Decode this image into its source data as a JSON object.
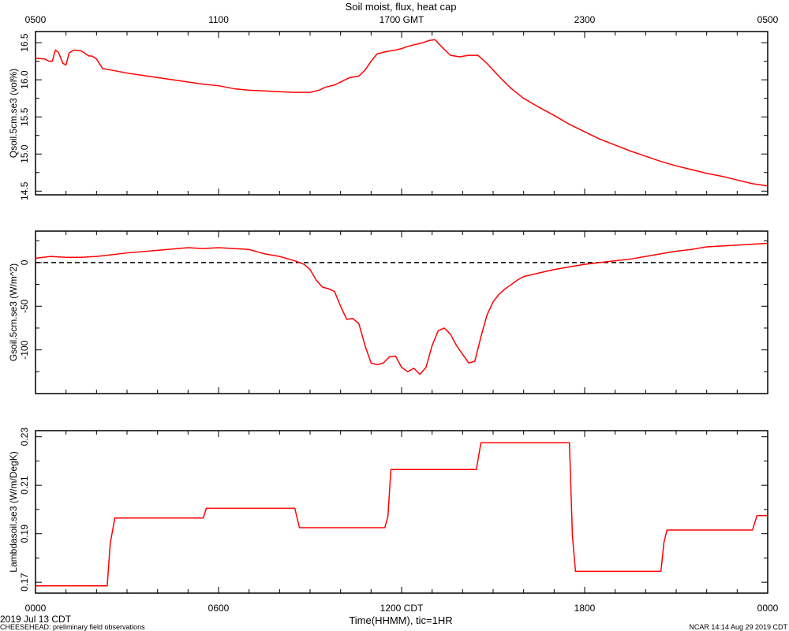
{
  "title": "Soil moist, flux, heat cap",
  "top_axis": {
    "ticks": [
      "0500",
      "1100",
      "1700 GMT",
      "2300",
      "0500"
    ]
  },
  "bottom_axis": {
    "ticks": [
      "0000",
      "0600",
      "1200 CDT",
      "1800",
      "0000"
    ],
    "label": "Time(HHMM), tic=1HR"
  },
  "footer": {
    "date": "2019 Jul 13 CDT",
    "project": "CHEESEHEAD: preliminary field observations",
    "credit": "NCAR 14:14 Aug 29 2019 CDT"
  },
  "colors": {
    "series": "#ff0000",
    "axes": "#000000",
    "zero_line": "#000000"
  },
  "chart_data": [
    {
      "type": "line",
      "ylabel": "Qsoil.5cm.se3 (vol%)",
      "x_units": "hours CDT from 0000",
      "xlim": [
        0,
        24
      ],
      "ylim": [
        14.45,
        16.65
      ],
      "yticks": [
        "14.5",
        "15.0",
        "15.5",
        "16.0",
        "16.5"
      ],
      "ytick_values": [
        14.5,
        15.0,
        15.5,
        16.0,
        16.5
      ],
      "series": [
        {
          "x": [
            0,
            0.3,
            0.45,
            0.55,
            0.65,
            0.75,
            0.9,
            1.0,
            1.1,
            1.25,
            1.5,
            1.75,
            1.85,
            2.0,
            2.2,
            2.5,
            3.0,
            3.5,
            4.0,
            4.5,
            5.0,
            5.5,
            6.0,
            6.5,
            7.0,
            7.5,
            8.0,
            8.5,
            9.0,
            9.3,
            9.5,
            9.8,
            10.0,
            10.3,
            10.6,
            10.8,
            11.0,
            11.2,
            11.5,
            11.8,
            12.0,
            12.2,
            12.5,
            12.7,
            12.9,
            13.1,
            13.3,
            13.6,
            13.9,
            14.2,
            14.5,
            14.8,
            15.0,
            15.3,
            15.6,
            16.0,
            16.5,
            17.0,
            17.5,
            18.0,
            18.5,
            19.0,
            19.5,
            20.0,
            20.5,
            21.0,
            21.5,
            22.0,
            22.5,
            23.0,
            23.5,
            24.0
          ],
          "y": [
            16.29,
            16.28,
            16.25,
            16.25,
            16.4,
            16.37,
            16.22,
            16.2,
            16.36,
            16.4,
            16.39,
            16.32,
            16.32,
            16.28,
            16.15,
            16.13,
            16.09,
            16.06,
            16.03,
            16.0,
            15.97,
            15.94,
            15.92,
            15.88,
            15.86,
            15.85,
            15.84,
            15.83,
            15.83,
            15.86,
            15.9,
            15.93,
            15.97,
            16.03,
            16.05,
            16.13,
            16.25,
            16.35,
            16.38,
            16.4,
            16.42,
            16.45,
            16.48,
            16.5,
            16.53,
            16.54,
            16.45,
            16.33,
            16.31,
            16.33,
            16.33,
            16.22,
            16.13,
            16.0,
            15.88,
            15.75,
            15.63,
            15.52,
            15.4,
            15.3,
            15.2,
            15.12,
            15.04,
            14.97,
            14.9,
            14.84,
            14.79,
            14.74,
            14.7,
            14.65,
            14.6,
            14.57
          ]
        }
      ]
    },
    {
      "type": "line",
      "ylabel": "Gsoil.5cm.se3 (W/m^2)",
      "x_units": "hours CDT from 0000",
      "xlim": [
        0,
        24
      ],
      "ylim": [
        -150,
        36
      ],
      "yticks": [
        "0",
        "-50",
        "-100"
      ],
      "ytick_values": [
        0,
        -50,
        -100
      ],
      "zero_line": true,
      "series": [
        {
          "x": [
            0,
            0.5,
            1.0,
            1.5,
            2.0,
            3.0,
            4.0,
            5.0,
            5.5,
            6.0,
            6.5,
            7.0,
            7.5,
            8.0,
            8.5,
            8.8,
            9.0,
            9.2,
            9.4,
            9.6,
            9.8,
            10.0,
            10.2,
            10.4,
            10.6,
            10.8,
            11.0,
            11.2,
            11.4,
            11.6,
            11.8,
            12.0,
            12.2,
            12.4,
            12.6,
            12.8,
            13.0,
            13.2,
            13.4,
            13.6,
            13.8,
            14.0,
            14.2,
            14.4,
            14.6,
            14.8,
            15.0,
            15.2,
            15.4,
            15.6,
            15.8,
            16.0,
            16.5,
            17.0,
            17.5,
            18.0,
            18.5,
            19.0,
            19.5,
            20.0,
            20.5,
            21.0,
            21.5,
            22.0,
            22.5,
            23.0,
            23.5,
            24.0
          ],
          "y": [
            5,
            7,
            6,
            6,
            7,
            11,
            14,
            17,
            16,
            17,
            16,
            15,
            10,
            7,
            2,
            -2,
            -8,
            -20,
            -28,
            -30,
            -33,
            -50,
            -65,
            -64,
            -70,
            -95,
            -115,
            -117,
            -115,
            -108,
            -107,
            -120,
            -125,
            -121,
            -128,
            -120,
            -95,
            -78,
            -75,
            -82,
            -95,
            -105,
            -115,
            -113,
            -85,
            -60,
            -45,
            -36,
            -30,
            -25,
            -20,
            -16,
            -12,
            -8,
            -5,
            -2,
            0,
            2,
            4,
            7,
            10,
            13,
            15,
            18,
            19,
            20,
            21,
            22
          ]
        }
      ]
    },
    {
      "type": "line",
      "ylabel": "Lambdasoil.se3 (W/m/DegK)",
      "x_units": "hours CDT from 0000",
      "xlim": [
        0,
        24
      ],
      "ylim": [
        0.1655,
        0.2325
      ],
      "yticks": [
        "0.17",
        "0.19",
        "0.21",
        "0.23"
      ],
      "ytick_values": [
        0.17,
        0.19,
        0.21,
        0.23
      ],
      "series": [
        {
          "x": [
            0,
            2.35,
            2.45,
            2.6,
            5.5,
            5.6,
            8.5,
            8.65,
            11.45,
            11.55,
            11.65,
            14.45,
            14.6,
            17.5,
            17.6,
            17.7,
            20.5,
            20.6,
            20.7,
            23.5,
            23.65,
            24.0
          ],
          "y": [
            0.1685,
            0.1685,
            0.186,
            0.1965,
            0.1965,
            0.2005,
            0.2005,
            0.1925,
            0.1925,
            0.197,
            0.2165,
            0.2165,
            0.2275,
            0.2275,
            0.189,
            0.1745,
            0.1745,
            0.1865,
            0.1915,
            0.1915,
            0.1975,
            0.1975
          ]
        }
      ]
    }
  ]
}
